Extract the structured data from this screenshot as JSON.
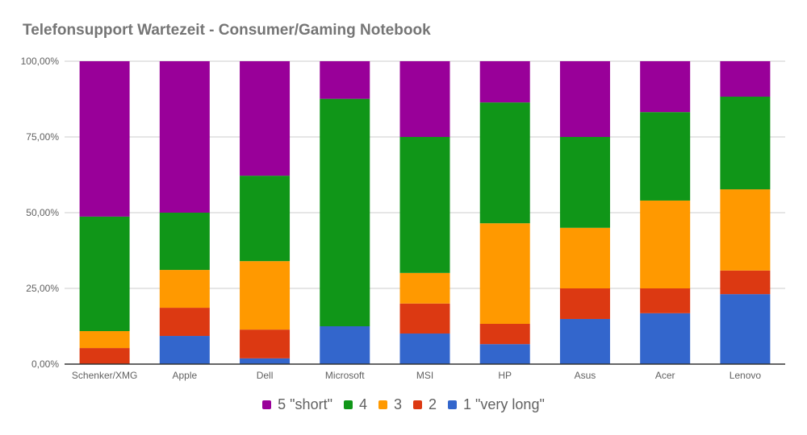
{
  "chart_data": {
    "type": "bar",
    "stacked": true,
    "title": "Telefonsupport Wartezeit - Consumer/Gaming Notebook",
    "xlabel": "",
    "ylabel": "",
    "ylim": [
      0,
      100
    ],
    "y_ticks": [
      "0,00%",
      "25,00%",
      "50,00%",
      "75,00%",
      "100,00%"
    ],
    "y_tick_values": [
      0,
      25,
      50,
      75,
      100
    ],
    "grid": true,
    "legend_position": "bottom",
    "categories": [
      "Schenker/XMG",
      "Apple",
      "Dell",
      "Microsoft",
      "MSI",
      "HP",
      "Asus",
      "Acer",
      "Lenovo"
    ],
    "series": [
      {
        "name": "1 \"very long\"",
        "color": "#3366cc",
        "values": [
          0,
          9.3,
          1.9,
          12.5,
          10.1,
          6.6,
          14.9,
          16.8,
          23.1
        ]
      },
      {
        "name": "2",
        "color": "#dc3912",
        "values": [
          5.3,
          9.3,
          9.5,
          0,
          9.9,
          6.7,
          10.1,
          8.2,
          7.8
        ]
      },
      {
        "name": "3",
        "color": "#ff9900",
        "values": [
          5.6,
          12.5,
          22.6,
          0,
          10.1,
          33.2,
          20.0,
          29.0,
          26.8
        ]
      },
      {
        "name": "4",
        "color": "#109618",
        "values": [
          37.8,
          18.9,
          28.2,
          75.1,
          44.9,
          39.9,
          30.0,
          29.2,
          30.6
        ]
      },
      {
        "name": "5 \"short\"",
        "color": "#990099",
        "values": [
          51.3,
          50.0,
          37.8,
          12.4,
          25.0,
          13.6,
          25.0,
          16.8,
          11.7
        ]
      }
    ],
    "legend_order": [
      4,
      3,
      2,
      1,
      0
    ]
  }
}
